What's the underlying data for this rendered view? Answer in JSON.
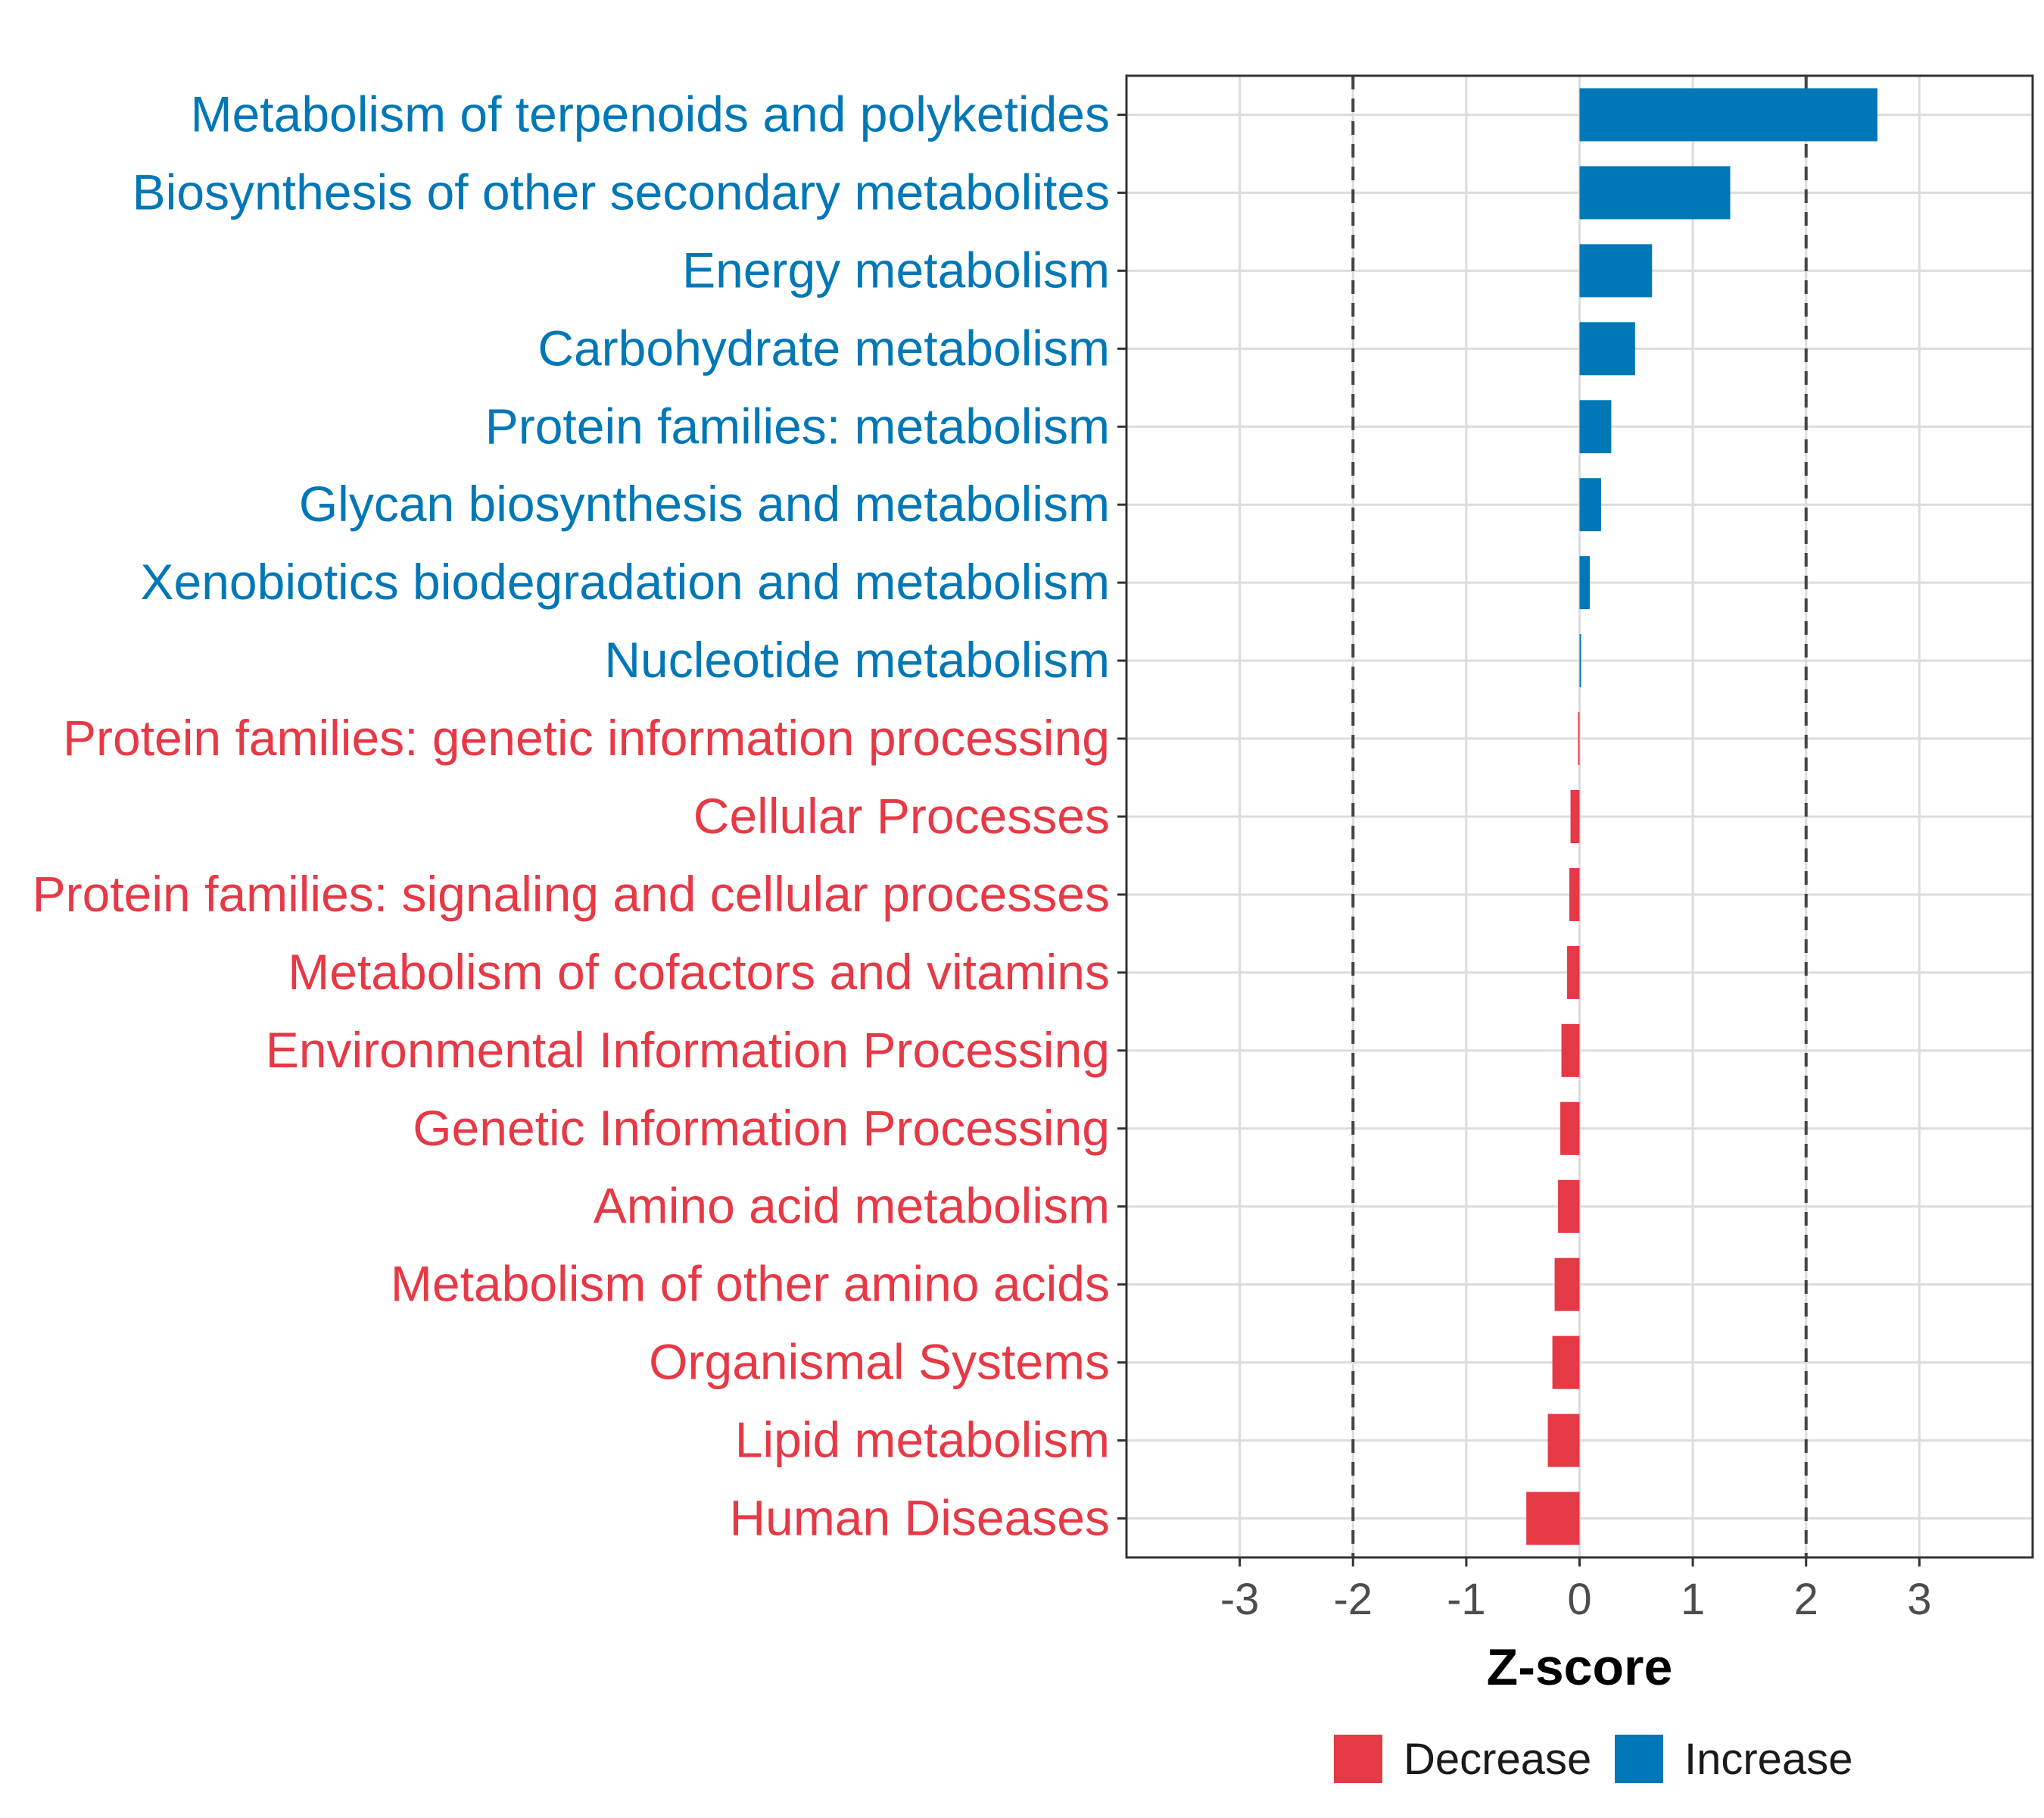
{
  "chart_data": {
    "type": "bar",
    "orientation": "horizontal",
    "title": "",
    "xlabel": "Z-score",
    "ylabel": "",
    "xlim": [
      -4,
      4
    ],
    "xticks": [
      -3,
      -2,
      -1,
      0,
      1,
      2,
      3
    ],
    "reference_lines": [
      -2,
      2
    ],
    "grid": true,
    "legend_position": "bottom",
    "categories": [
      "Metabolism of terpenoids and polyketides",
      "Biosynthesis of other secondary metabolites",
      "Energy metabolism",
      "Carbohydrate metabolism",
      "Protein families: metabolism",
      "Glycan biosynthesis and metabolism",
      "Xenobiotics biodegradation and metabolism",
      "Nucleotide metabolism",
      "Protein families: genetic information processing",
      "Cellular Processes",
      "Protein families: signaling and cellular processes",
      "Metabolism of cofactors and vitamins",
      "Environmental Information Processing",
      "Genetic Information Processing",
      "Amino acid metabolism",
      "Metabolism of other amino acids",
      "Organismal Systems",
      "Lipid metabolism",
      "Human Diseases"
    ],
    "values": [
      2.63,
      1.33,
      0.64,
      0.49,
      0.28,
      0.19,
      0.09,
      0.01,
      -0.01,
      -0.08,
      -0.09,
      -0.11,
      -0.16,
      -0.17,
      -0.19,
      -0.22,
      -0.24,
      -0.28,
      -0.47
    ],
    "groups": [
      "Increase",
      "Increase",
      "Increase",
      "Increase",
      "Increase",
      "Increase",
      "Increase",
      "Increase",
      "Decrease",
      "Decrease",
      "Decrease",
      "Decrease",
      "Decrease",
      "Decrease",
      "Decrease",
      "Decrease",
      "Decrease",
      "Decrease",
      "Decrease"
    ],
    "legend": [
      {
        "name": "Decrease",
        "color": "#e63946"
      },
      {
        "name": "Increase",
        "color": "#0077b6"
      }
    ]
  }
}
